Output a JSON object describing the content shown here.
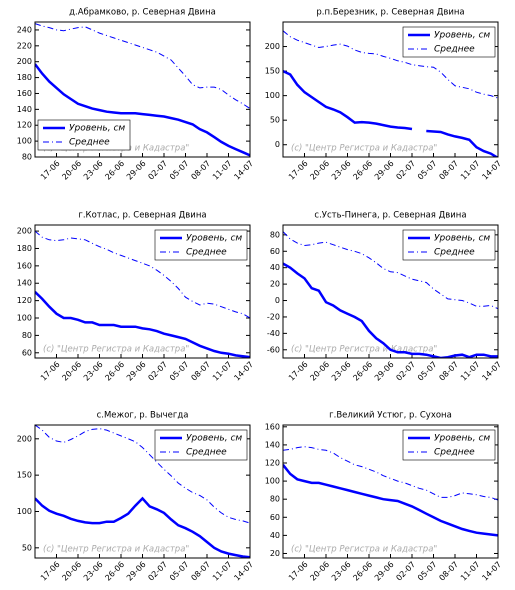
{
  "chart_data": [
    {
      "type": "line",
      "title": "д.Абрамково, р. Северная Двина",
      "categories": [
        null,
        null,
        null,
        "17-06",
        null,
        null,
        "20-06",
        null,
        null,
        "23-06",
        null,
        null,
        "26-06",
        null,
        null,
        "29-06",
        null,
        null,
        "02-07",
        null,
        null,
        "05-07",
        null,
        null,
        "08-07",
        null,
        null,
        "11-07",
        null,
        null,
        "14-07"
      ],
      "series": [
        {
          "name": "Уровень, см",
          "color": "#0000ff",
          "style": "solid",
          "values": [
            197,
            185,
            175,
            167,
            159,
            153,
            147,
            144,
            141,
            139,
            137,
            136,
            135,
            135,
            135,
            134,
            133,
            132,
            131,
            129,
            127,
            124,
            121,
            115,
            111,
            105,
            99,
            94,
            90,
            86,
            82
          ]
        },
        {
          "name": "Среднее",
          "color": "#0000ff",
          "style": "dashdot",
          "values": [
            248,
            245,
            243,
            240,
            239,
            241,
            243,
            244,
            240,
            236,
            233,
            230,
            227,
            224,
            221,
            218,
            215,
            212,
            207,
            202,
            192,
            182,
            171,
            167,
            168,
            168,
            165,
            158,
            152,
            147,
            141
          ]
        }
      ],
      "ylim": [
        80,
        250
      ],
      "yticks": [
        80,
        100,
        120,
        140,
        160,
        180,
        200,
        220,
        240
      ],
      "legend": "lower-left",
      "annotation": "(c) \"Центр Регистра и Кадастра\""
    },
    {
      "type": "line",
      "title": "р.п.Березник, р. Северная Двина",
      "categories": [
        null,
        null,
        null,
        "17-06",
        null,
        null,
        "20-06",
        null,
        null,
        "23-06",
        null,
        null,
        "26-06",
        null,
        null,
        "29-06",
        null,
        null,
        "02-07",
        null,
        null,
        "05-07",
        null,
        null,
        "08-07",
        null,
        null,
        "11-07",
        null,
        null,
        "14-07"
      ],
      "series": [
        {
          "name": "Уровень, см",
          "color": "#0000ff",
          "style": "solid",
          "values": [
            150,
            143,
            122,
            107,
            97,
            87,
            77,
            72,
            66,
            56,
            45,
            46,
            45,
            43,
            40,
            37,
            35,
            34,
            32,
            null,
            28,
            27,
            26,
            21,
            17,
            14,
            10,
            -5,
            -13,
            -18,
            -27
          ]
        },
        {
          "name": "Среднее",
          "color": "#0000ff",
          "style": "dashdot",
          "values": [
            232,
            220,
            213,
            208,
            203,
            198,
            200,
            203,
            205,
            201,
            193,
            188,
            186,
            185,
            180,
            176,
            171,
            168,
            163,
            161,
            159,
            158,
            148,
            133,
            120,
            117,
            114,
            107,
            103,
            100,
            95
          ]
        }
      ],
      "ylim": [
        -25,
        250
      ],
      "yticks": [
        0,
        50,
        100,
        150,
        200
      ],
      "legend": "upper-right",
      "annotation": "(c) \"Центр Регистра и Кадастра\""
    },
    {
      "type": "line",
      "title": "г.Котлас, р. Северная Двина",
      "categories": [
        null,
        null,
        null,
        "17-06",
        null,
        null,
        "20-06",
        null,
        null,
        "23-06",
        null,
        null,
        "26-06",
        null,
        null,
        "29-06",
        null,
        null,
        "02-07",
        null,
        null,
        "05-07",
        null,
        null,
        "08-07",
        null,
        null,
        "11-07",
        null,
        null,
        "14-07"
      ],
      "series": [
        {
          "name": "Уровень, см",
          "color": "#0000ff",
          "style": "solid",
          "values": [
            130,
            122,
            113,
            105,
            100,
            100,
            98,
            95,
            95,
            92,
            92,
            92,
            90,
            90,
            90,
            88,
            87,
            85,
            82,
            80,
            78,
            76,
            72,
            68,
            65,
            62,
            60,
            59,
            57,
            56,
            55
          ]
        },
        {
          "name": "Среднее",
          "color": "#0000ff",
          "style": "dashdot",
          "values": [
            200,
            193,
            190,
            189,
            190,
            192,
            191,
            190,
            186,
            182,
            179,
            175,
            172,
            169,
            166,
            163,
            160,
            155,
            149,
            142,
            134,
            124,
            119,
            115,
            117,
            116,
            113,
            110,
            107,
            105,
            100
          ]
        }
      ],
      "ylim": [
        54,
        207
      ],
      "yticks": [
        60,
        80,
        100,
        120,
        140,
        160,
        180,
        200
      ],
      "legend": "upper-right",
      "annotation": "(c) \"Центр Регистра и Кадастра\""
    },
    {
      "type": "line",
      "title": "с.Усть-Пинега, р. Северная Двина",
      "categories": [
        null,
        null,
        null,
        "17-06",
        null,
        null,
        "20-06",
        null,
        null,
        "23-06",
        null,
        null,
        "26-06",
        null,
        null,
        "29-06",
        null,
        null,
        "02-07",
        null,
        null,
        "05-07",
        null,
        null,
        "08-07",
        null,
        null,
        "11-07",
        null,
        null,
        "14-07"
      ],
      "series": [
        {
          "name": "Уровень, см",
          "color": "#0000ff",
          "style": "solid",
          "values": [
            45,
            40,
            33,
            27,
            15,
            12,
            -2,
            -6,
            -12,
            -16,
            -20,
            -25,
            -37,
            -46,
            -52,
            -60,
            -63,
            -63,
            -65,
            -65,
            -66,
            -68,
            -70,
            -69,
            -67,
            -66,
            -69,
            -66,
            -66,
            -68,
            -68
          ]
        },
        {
          "name": "Среднее",
          "color": "#0000ff",
          "style": "dashdot",
          "values": [
            84,
            75,
            70,
            67,
            68,
            70,
            71,
            68,
            65,
            62,
            60,
            57,
            52,
            46,
            39,
            35,
            34,
            30,
            26,
            24,
            22,
            14,
            8,
            2,
            1,
            0,
            -3,
            -7,
            -7,
            -6,
            -10
          ]
        }
      ],
      "ylim": [
        -70,
        92
      ],
      "yticks": [
        -60,
        -40,
        -20,
        0,
        20,
        40,
        60,
        80
      ],
      "legend": "upper-right",
      "annotation": "(c) \"Центр Регистра и Кадастра\""
    },
    {
      "type": "line",
      "title": "с.Межог, р. Вычегда",
      "categories": [
        null,
        null,
        null,
        "17-06",
        null,
        null,
        "20-06",
        null,
        null,
        "23-06",
        null,
        null,
        "26-06",
        null,
        null,
        "29-06",
        null,
        null,
        "02-07",
        null,
        null,
        "05-07",
        null,
        null,
        "08-07",
        null,
        null,
        "11-07",
        null,
        null,
        "14-07"
      ],
      "series": [
        {
          "name": "Уровень, см",
          "color": "#0000ff",
          "style": "solid",
          "values": [
            118,
            108,
            101,
            97,
            94,
            90,
            87,
            85,
            84,
            84,
            86,
            86,
            91,
            97,
            108,
            118,
            107,
            103,
            98,
            89,
            81,
            77,
            72,
            66,
            58,
            50,
            45,
            42,
            40,
            38,
            37
          ]
        },
        {
          "name": "Среднее",
          "color": "#0000ff",
          "style": "dashdot",
          "values": [
            219,
            212,
            202,
            197,
            195,
            199,
            204,
            210,
            213,
            214,
            212,
            208,
            204,
            200,
            196,
            188,
            178,
            168,
            158,
            149,
            139,
            132,
            126,
            122,
            116,
            106,
            98,
            92,
            89,
            87,
            84
          ]
        }
      ],
      "ylim": [
        36,
        219
      ],
      "yticks": [
        50,
        100,
        150,
        200
      ],
      "legend": "upper-right",
      "annotation": "(c) \"Центр Регистра и Кадастра\""
    },
    {
      "type": "line",
      "title": "г.Великий Устюг, р. Сухона",
      "categories": [
        null,
        null,
        null,
        "17-06",
        null,
        null,
        "20-06",
        null,
        null,
        "23-06",
        null,
        null,
        "26-06",
        null,
        null,
        "29-06",
        null,
        null,
        "02-07",
        null,
        null,
        "05-07",
        null,
        null,
        "08-07",
        null,
        null,
        "11-07",
        null,
        null,
        "14-07"
      ],
      "series": [
        {
          "name": "Уровень, см",
          "color": "#0000ff",
          "style": "solid",
          "values": [
            118,
            108,
            102,
            100,
            98,
            98,
            96,
            94,
            92,
            90,
            88,
            86,
            84,
            82,
            80,
            79,
            78,
            75,
            72,
            68,
            64,
            60,
            56,
            53,
            50,
            47,
            45,
            43,
            42,
            41,
            40
          ]
        },
        {
          "name": "Среднее",
          "color": "#0000ff",
          "style": "dashdot",
          "values": [
            134,
            135,
            137,
            138,
            137,
            135,
            134,
            131,
            126,
            122,
            118,
            116,
            113,
            110,
            106,
            103,
            100,
            98,
            95,
            92,
            90,
            86,
            82,
            82,
            84,
            87,
            86,
            85,
            83,
            82,
            79
          ]
        }
      ],
      "ylim": [
        15,
        162
      ],
      "yticks": [
        20,
        40,
        60,
        80,
        100,
        120,
        140,
        160
      ],
      "legend": "upper-right",
      "annotation": "(c) \"Центр Регистра и Кадастра\""
    }
  ]
}
